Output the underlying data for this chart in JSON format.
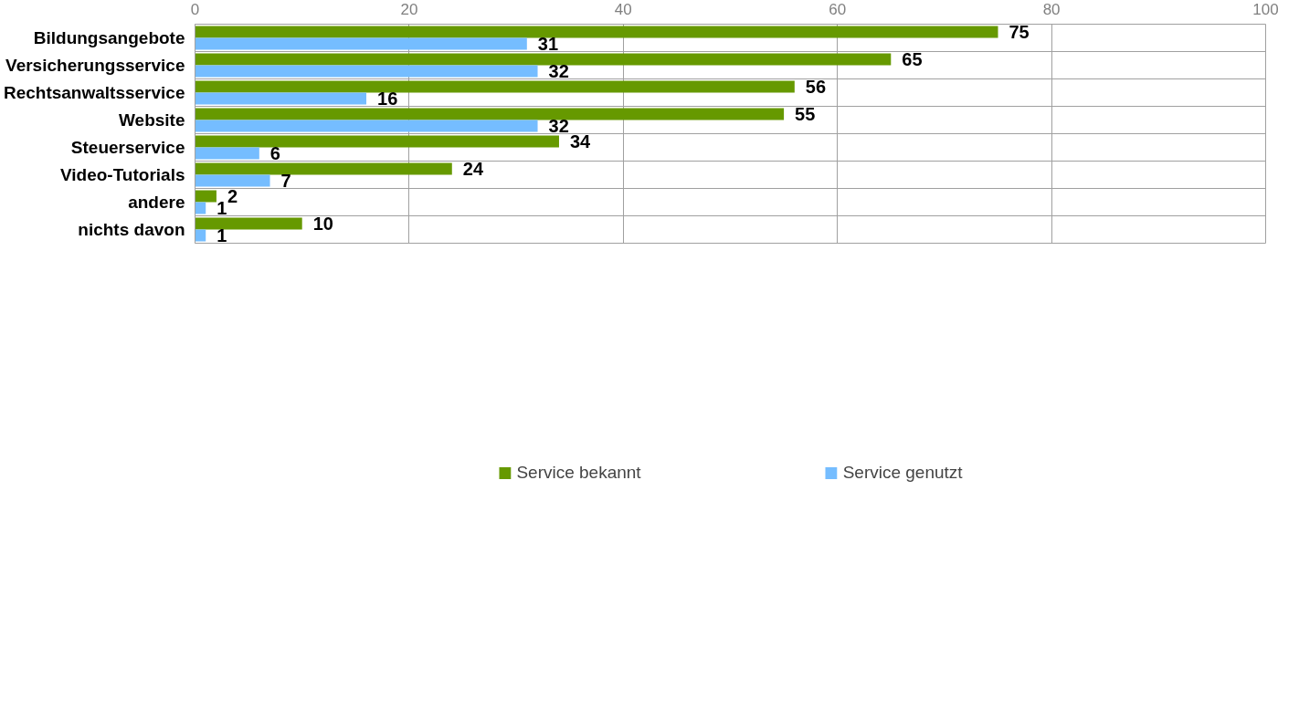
{
  "chart_data": {
    "type": "bar",
    "orientation": "horizontal",
    "categories": [
      "Bildungsangebote",
      "Versicherungsservice",
      "Rechtsanwaltsservice",
      "Website",
      "Steuerservice",
      "Video-Tutorials",
      "andere",
      "nichts davon"
    ],
    "series": [
      {
        "name": "Service bekannt",
        "color": "#669900",
        "values": [
          75,
          65,
          56,
          55,
          34,
          24,
          2,
          10
        ]
      },
      {
        "name": "Service genutzt",
        "color": "#75bdff",
        "values": [
          31,
          32,
          16,
          32,
          6,
          7,
          1,
          1
        ]
      }
    ],
    "xlim": [
      0,
      100
    ],
    "xticks": [
      0,
      20,
      40,
      60,
      80,
      100
    ],
    "grid": true,
    "legend": "bottom",
    "data_labels": true
  }
}
